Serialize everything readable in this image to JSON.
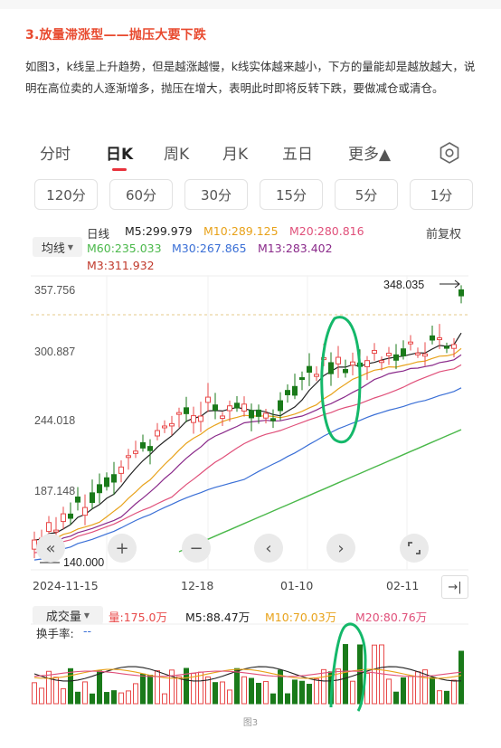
{
  "article": {
    "heading": "3.放量滞涨型——抛压大要下跌",
    "paragraph": "如图3，k线呈上升趋势，但是越涨越慢，k线实体越来越小，下方的量能却是越放越大，说明在高位卖的人逐渐增多，抛压在增大，表明此时即将反转下跌，要做减仓或清仓。",
    "caption": "图3"
  },
  "tabs": {
    "items": [
      "分时",
      "日K",
      "周K",
      "月K",
      "五日",
      "更多▲"
    ],
    "active": "日K",
    "settings_icon": "hexagon-gear-icon"
  },
  "periods": [
    "120分",
    "60分",
    "30分",
    "15分",
    "5分",
    "1分"
  ],
  "main_legend": {
    "ma_button": "均线",
    "period_label": "日线",
    "adjust_label": "前复权",
    "m5": "M5:299.979",
    "m10": "M10:289.125",
    "m20": "M20:280.816",
    "m60": "M60:235.033",
    "m30": "M30:267.865",
    "m13": "M13:283.402",
    "m3": "M3:311.932"
  },
  "price_axis": {
    "labels": [
      "357.756",
      "300.887",
      "244.018",
      "187.148",
      "140.000"
    ],
    "high_marker": "348.035"
  },
  "dates": [
    "2024-11-15",
    "12-18",
    "01-10",
    "02-11"
  ],
  "controls": {
    "prev_fast": "«",
    "zoom_in": "+",
    "zoom_out": "−",
    "prev": "‹",
    "next": "›",
    "fullscreen_icon": "fullscreen-icon",
    "go_end": "→|"
  },
  "volume_legend": {
    "button": "成交量",
    "vol": "量:175.0万",
    "m5": "M5:88.47万",
    "m10": "M10:70.03万",
    "m20": "M20:80.76万",
    "turnover": "换手率:",
    "turnover_value": "--"
  },
  "colors": {
    "up": "#e84a4a",
    "down": "#1a7a1a",
    "m5": "#222222",
    "m10": "#e8a21a",
    "m20": "#e0507a",
    "m30": "#3a6fd6",
    "m60": "#4ab84a",
    "m13": "#8a2a8a",
    "m3": "#c0392b",
    "accent": "#e8323c",
    "annotation": "#14b86a"
  }
}
